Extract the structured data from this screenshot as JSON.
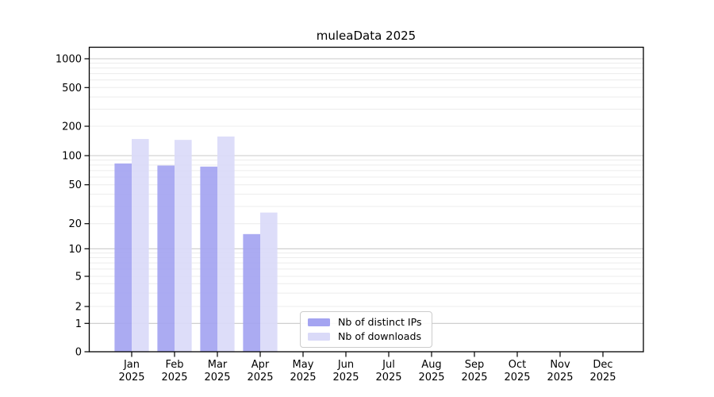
{
  "chart_data": {
    "type": "bar",
    "title": "muleaData 2025",
    "categories": [
      "Jan 2025",
      "Feb 2025",
      "Mar 2025",
      "Apr 2025",
      "May 2025",
      "Jun 2025",
      "Jul 2025",
      "Aug 2025",
      "Sep 2025",
      "Oct 2025",
      "Nov 2025",
      "Dec 2025"
    ],
    "series": [
      {
        "name": "Nb of distinct IPs",
        "color": "#a4a4f1",
        "values": [
          83,
          79,
          77,
          15,
          0,
          0,
          0,
          0,
          0,
          0,
          0,
          0
        ]
      },
      {
        "name": "Nb of downloads",
        "color": "#dadaf8",
        "values": [
          148,
          145,
          157,
          26,
          0,
          0,
          0,
          0,
          0,
          0,
          0,
          0
        ]
      }
    ],
    "yticks": [
      0,
      1,
      2,
      5,
      10,
      20,
      50,
      100,
      200,
      500,
      1000
    ],
    "yscale": "symlog",
    "ylim": [
      0,
      1320
    ],
    "xlabel": "",
    "ylabel": "",
    "grid": true,
    "legend": {
      "position": "lower center",
      "labels": [
        "Nb of distinct IPs",
        "Nb of downloads"
      ]
    },
    "colors": {
      "major_gridline": "#c9c9c9",
      "minor_gridline": "#ececec",
      "axis": "#000000"
    }
  }
}
